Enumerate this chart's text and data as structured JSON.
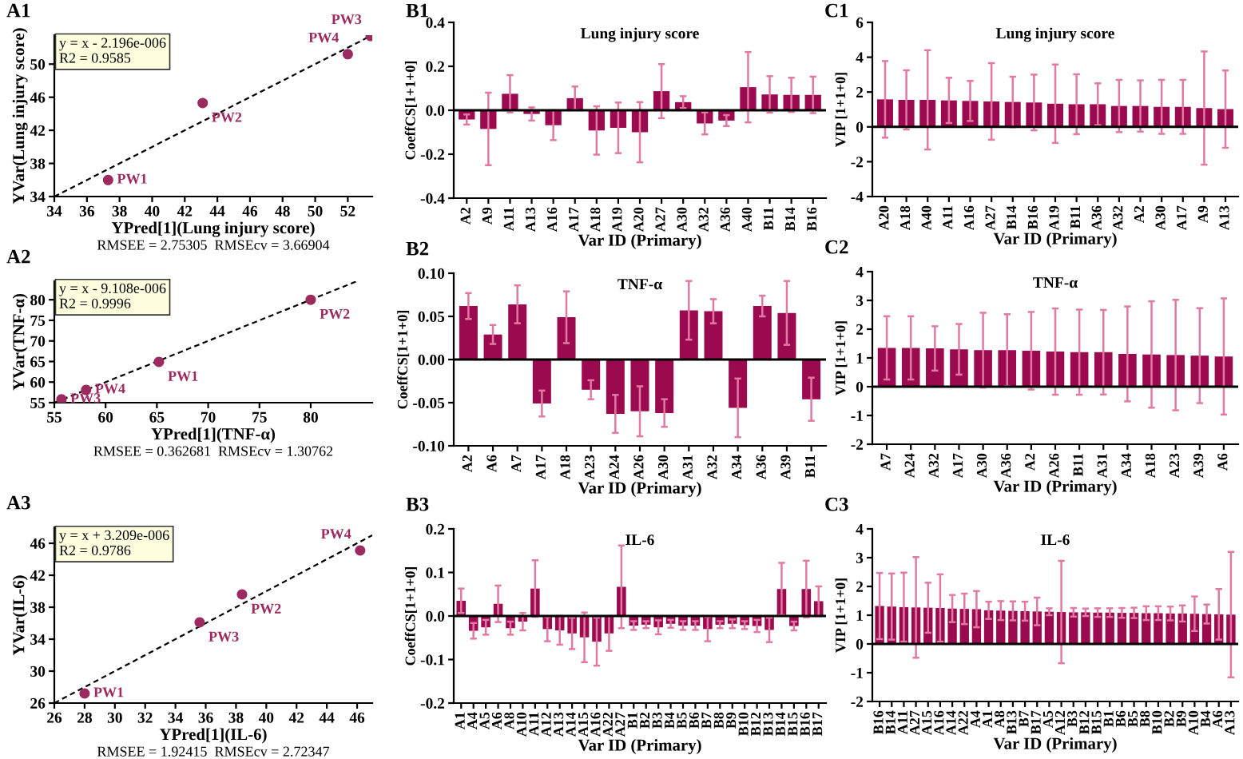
{
  "chart_data": [
    {
      "type": "scatter",
      "xlabel": "YPred[1](Lung injury score)",
      "ylabel": "YVar(Lung injury score)",
      "xlim": [
        34,
        53.5
      ],
      "ylim": [
        34,
        53.5
      ],
      "xticks": [
        34,
        36,
        38,
        40,
        42,
        44,
        46,
        48,
        50,
        52
      ],
      "yticks": [
        34,
        38,
        42,
        46,
        50
      ],
      "series": [
        {
          "type": "scatter",
          "marker": "circle",
          "color": "#9b2a5e",
          "x": [
            37.3,
            43.1,
            53.4,
            52.0
          ],
          "values": [
            36.0,
            45.3,
            53.4,
            51.2
          ]
        },
        {
          "type": "line",
          "color": "#000000",
          "line_style": "dashed",
          "x": [
            34,
            53.5
          ],
          "values": [
            34,
            53.5
          ]
        }
      ],
      "annotations": [
        "A1",
        "y = x - 2.196e-006",
        "R2 = 0.9585",
        "RMSEE = 2.75305  RMSEcv = 3.66904",
        {
          "text": "PW1",
          "x": 37.3,
          "y": 36.0
        },
        {
          "text": "PW2",
          "x": 43.1,
          "y": 45.3
        },
        {
          "text": "PW3",
          "x": 53.4,
          "y": 53.4
        },
        {
          "text": "PW4",
          "x": 52.0,
          "y": 51.2
        }
      ]
    },
    {
      "type": "bar",
      "title": "Lung injury score",
      "xlabel": "Var ID (Primary)",
      "ylabel": "CoeffCS[1+1+0]",
      "color": "#9b0a4f",
      "ylim": [
        -0.4,
        0.4
      ],
      "yticks": [
        -0.4,
        -0.2,
        {
          "value": 0,
          "label": "0.0"
        },
        0.2,
        0.4
      ],
      "categories": [
        "A2",
        "A9",
        "A11",
        "A13",
        "A16",
        "A17",
        "A18",
        "A19",
        "A20",
        "A27",
        "A30",
        "A32",
        "A36",
        "A40",
        "B11",
        "B14",
        "B16"
      ],
      "values": [
        -0.042,
        -0.085,
        0.075,
        -0.017,
        -0.068,
        0.055,
        -0.092,
        -0.08,
        -0.1,
        0.087,
        0.037,
        -0.06,
        -0.047,
        0.105,
        0.072,
        0.07,
        0.07
      ],
      "errors": [
        0.023,
        0.165,
        0.085,
        0.03,
        0.068,
        0.053,
        0.11,
        0.115,
        0.137,
        0.123,
        0.027,
        0.05,
        0.025,
        0.16,
        0.083,
        0.078,
        0.083
      ],
      "ref_lines": [
        {
          "axis": "y",
          "value": 0,
          "color": "#000000"
        }
      ],
      "annotations": [
        "B1"
      ]
    },
    {
      "type": "bar",
      "title": "Lung injury score",
      "xlabel": "Var ID (Primary)",
      "ylabel": "VIP [1+1+0]",
      "color": "#9b0a4f",
      "ylim": [
        -4,
        6
      ],
      "yticks": [
        -4,
        -2,
        0,
        2,
        4,
        6
      ],
      "categories": [
        "A20",
        "A18",
        "A40",
        "A11",
        "A16",
        "A27",
        "B14",
        "B16",
        "A19",
        "B11",
        "A36",
        "A32",
        "A2",
        "A30",
        "A17",
        "A9",
        "A13"
      ],
      "values": [
        1.58,
        1.55,
        1.55,
        1.52,
        1.49,
        1.46,
        1.43,
        1.4,
        1.33,
        1.3,
        1.3,
        1.2,
        1.2,
        1.15,
        1.15,
        1.08,
        1.02
      ],
      "errors": [
        2.2,
        1.7,
        2.85,
        1.3,
        1.15,
        2.2,
        1.45,
        1.6,
        2.25,
        1.72,
        1.2,
        1.5,
        1.47,
        1.55,
        1.55,
        3.25,
        2.22
      ],
      "ref_lines": [
        {
          "axis": "y",
          "value": 0,
          "color": "#000000"
        }
      ],
      "annotations": [
        "C1"
      ]
    },
    {
      "type": "scatter",
      "xlabel": "YPred[1](TNF-α)",
      "ylabel": "YVar(TNF-α)",
      "xlim": [
        55,
        86
      ],
      "ylim": [
        55,
        84.5
      ],
      "xticks": [
        55,
        60,
        65,
        70,
        75,
        80
      ],
      "yticks": [
        55,
        60,
        65,
        70,
        75,
        80
      ],
      "series": [
        {
          "type": "scatter",
          "marker": "circle",
          "color": "#9b2a5e",
          "x": [
            65.2,
            80.0,
            55.7,
            58.1
          ],
          "values": [
            64.9,
            80.0,
            55.8,
            58.1
          ]
        },
        {
          "type": "line",
          "color": "#000000",
          "line_style": "dashed",
          "x": [
            55,
            84.5
          ],
          "values": [
            55,
            84.5
          ]
        }
      ],
      "annotations": [
        "A2",
        "y = x - 9.108e-006",
        "R2 = 0.9996",
        "RMSEE = 0.362681  RMSEcv = 1.30762",
        {
          "text": "PW1",
          "x": 65.2,
          "y": 64.9
        },
        {
          "text": "PW2",
          "x": 80.0,
          "y": 80.0
        },
        {
          "text": "PW3",
          "x": 55.7,
          "y": 55.8
        },
        {
          "text": "PW4",
          "x": 58.1,
          "y": 58.1
        }
      ]
    },
    {
      "type": "bar",
      "title": "TNF-α",
      "xlabel": "Var ID (Primary)",
      "ylabel": "CoeffCS[1+1+0]",
      "color": "#9b0a4f",
      "ylim": [
        -0.1,
        0.1
      ],
      "yticks": [
        {
          "value": -0.1,
          "label": "-0.10"
        },
        {
          "value": -0.05,
          "label": "-0.05"
        },
        {
          "value": 0,
          "label": "0.00"
        },
        {
          "value": 0.05,
          "label": "0.05"
        },
        {
          "value": 0.1,
          "label": "0.10"
        }
      ],
      "categories": [
        "A2",
        "A6",
        "A7",
        "A17",
        "A18",
        "A23",
        "A24",
        "A26",
        "A30",
        "A31",
        "A32",
        "A34",
        "A36",
        "A39",
        "B11"
      ],
      "values": [
        0.062,
        0.029,
        0.064,
        -0.051,
        0.049,
        -0.035,
        -0.063,
        -0.06,
        -0.062,
        0.057,
        0.056,
        -0.056,
        0.062,
        0.054,
        -0.046
      ],
      "errors": [
        0.015,
        0.011,
        0.022,
        0.015,
        0.03,
        0.011,
        0.022,
        0.029,
        0.016,
        0.034,
        0.014,
        0.034,
        0.012,
        0.037,
        0.025
      ],
      "ref_lines": [
        {
          "axis": "y",
          "value": 0,
          "color": "#000000"
        }
      ],
      "annotations": [
        "B2"
      ]
    },
    {
      "type": "bar",
      "title": "TNF-α",
      "xlabel": "Var ID (Primary)",
      "ylabel": "VIP [1+1+0]",
      "color": "#9b0a4f",
      "ylim": [
        -2,
        4
      ],
      "yticks": [
        -2,
        -1,
        0,
        1,
        2,
        3,
        4
      ],
      "categories": [
        "A7",
        "A24",
        "A32",
        "A17",
        "A30",
        "A36",
        "A2",
        "A26",
        "B11",
        "A31",
        "A34",
        "A18",
        "A23",
        "A39",
        "A6"
      ],
      "values": [
        1.35,
        1.35,
        1.33,
        1.3,
        1.27,
        1.27,
        1.25,
        1.22,
        1.2,
        1.2,
        1.14,
        1.12,
        1.1,
        1.08,
        1.05
      ],
      "errors": [
        1.1,
        1.1,
        0.77,
        0.88,
        1.3,
        1.25,
        1.35,
        1.5,
        1.48,
        1.47,
        1.65,
        1.85,
        1.92,
        1.65,
        2.02
      ],
      "ref_lines": [
        {
          "axis": "y",
          "value": 0,
          "color": "#000000"
        }
      ],
      "annotations": [
        "C2"
      ]
    },
    {
      "type": "scatter",
      "xlabel": "YPred[1](IL-6)",
      "ylabel": "YVar(IL-6)",
      "xlim": [
        26,
        47
      ],
      "ylim": [
        26,
        48
      ],
      "xticks": [
        26,
        28,
        30,
        32,
        34,
        36,
        38,
        40,
        42,
        44,
        46
      ],
      "yticks": [
        26,
        30,
        34,
        38,
        42,
        46
      ],
      "series": [
        {
          "type": "scatter",
          "marker": "circle",
          "color": "#9b2a5e",
          "x": [
            28.0,
            38.4,
            35.6,
            46.2
          ],
          "values": [
            27.2,
            39.6,
            36.1,
            45.1
          ]
        },
        {
          "type": "line",
          "color": "#000000",
          "line_style": "dashed",
          "x": [
            26,
            47
          ],
          "values": [
            26,
            47
          ]
        }
      ],
      "annotations": [
        "A3",
        "y = x + 3.209e-006",
        "R2 = 0.9786",
        "RMSEE = 1.92415  RMSEcv = 2.72347",
        {
          "text": "PW1",
          "x": 28.0,
          "y": 27.2
        },
        {
          "text": "PW2",
          "x": 38.4,
          "y": 39.6
        },
        {
          "text": "PW3",
          "x": 35.6,
          "y": 36.1
        },
        {
          "text": "PW4",
          "x": 46.2,
          "y": 45.1
        }
      ]
    },
    {
      "type": "bar",
      "title": "IL-6",
      "xlabel": "Var ID (Primary)",
      "ylabel": "CoeffCS[1+1+0]",
      "color": "#9b0a4f",
      "ylim": [
        -0.2,
        0.2
      ],
      "yticks": [
        -0.2,
        -0.1,
        {
          "value": 0,
          "label": "0.0"
        },
        0.1,
        0.2
      ],
      "categories": [
        "A1",
        "A4",
        "A5",
        "A6",
        "A8",
        "A10",
        "A11",
        "A12",
        "A13",
        "A14",
        "A15",
        "A16",
        "A22",
        "A27",
        "B1",
        "B2",
        "B3",
        "B4",
        "B5",
        "B6",
        "B7",
        "B8",
        "B9",
        "B10",
        "B12",
        "B13",
        "B14",
        "B15",
        "B16",
        "B17"
      ],
      "values": [
        0.035,
        -0.034,
        -0.026,
        0.028,
        -0.028,
        -0.013,
        0.063,
        -0.03,
        -0.033,
        -0.04,
        -0.049,
        -0.059,
        -0.04,
        0.067,
        -0.022,
        -0.02,
        -0.026,
        -0.018,
        -0.022,
        -0.022,
        -0.03,
        -0.02,
        -0.018,
        -0.021,
        -0.023,
        -0.032,
        0.062,
        -0.023,
        0.062,
        0.034
      ],
      "errors": [
        0.028,
        0.018,
        0.017,
        0.042,
        0.015,
        0.02,
        0.065,
        0.028,
        0.033,
        0.036,
        0.057,
        0.055,
        0.04,
        0.095,
        0.01,
        0.008,
        0.016,
        0.009,
        0.01,
        0.01,
        0.028,
        0.008,
        0.01,
        0.009,
        0.014,
        0.028,
        0.06,
        0.01,
        0.065,
        0.034
      ],
      "ref_lines": [
        {
          "axis": "y",
          "value": 0,
          "color": "#000000"
        }
      ],
      "annotations": [
        "B3"
      ]
    },
    {
      "type": "bar",
      "title": "IL-6",
      "xlabel": "Var ID (Primary)",
      "ylabel": "VIP [1+1+0]",
      "color": "#9b0a4f",
      "ylim": [
        -2,
        4
      ],
      "yticks": [
        -2,
        -1,
        0,
        1,
        2,
        3,
        4
      ],
      "categories": [
        "B16",
        "B14",
        "A11",
        "A27",
        "A15",
        "A16",
        "A14",
        "A22",
        "A4",
        "A1",
        "A8",
        "B13",
        "B7",
        "B17",
        "A5",
        "A12",
        "B3",
        "B12",
        "B15",
        "B1",
        "B6",
        "B5",
        "B8",
        "B10",
        "B2",
        "B9",
        "A10",
        "B4",
        "A6",
        "A13"
      ],
      "values": [
        1.32,
        1.3,
        1.28,
        1.27,
        1.26,
        1.25,
        1.23,
        1.22,
        1.21,
        1.17,
        1.16,
        1.15,
        1.14,
        1.13,
        1.12,
        1.11,
        1.1,
        1.1,
        1.09,
        1.09,
        1.08,
        1.08,
        1.07,
        1.07,
        1.06,
        1.06,
        1.05,
        1.04,
        1.03,
        1.02
      ],
      "errors": [
        1.15,
        1.15,
        1.2,
        1.75,
        0.87,
        1.17,
        0.47,
        0.53,
        0.63,
        0.3,
        0.33,
        0.33,
        0.33,
        0.48,
        0.12,
        1.78,
        0.15,
        0.13,
        0.15,
        0.15,
        0.17,
        0.18,
        0.24,
        0.24,
        0.24,
        0.28,
        0.6,
        0.33,
        0.88,
        2.18
      ],
      "ref_lines": [
        {
          "axis": "y",
          "value": 0,
          "color": "#000000"
        }
      ],
      "annotations": [
        "C3"
      ]
    }
  ]
}
